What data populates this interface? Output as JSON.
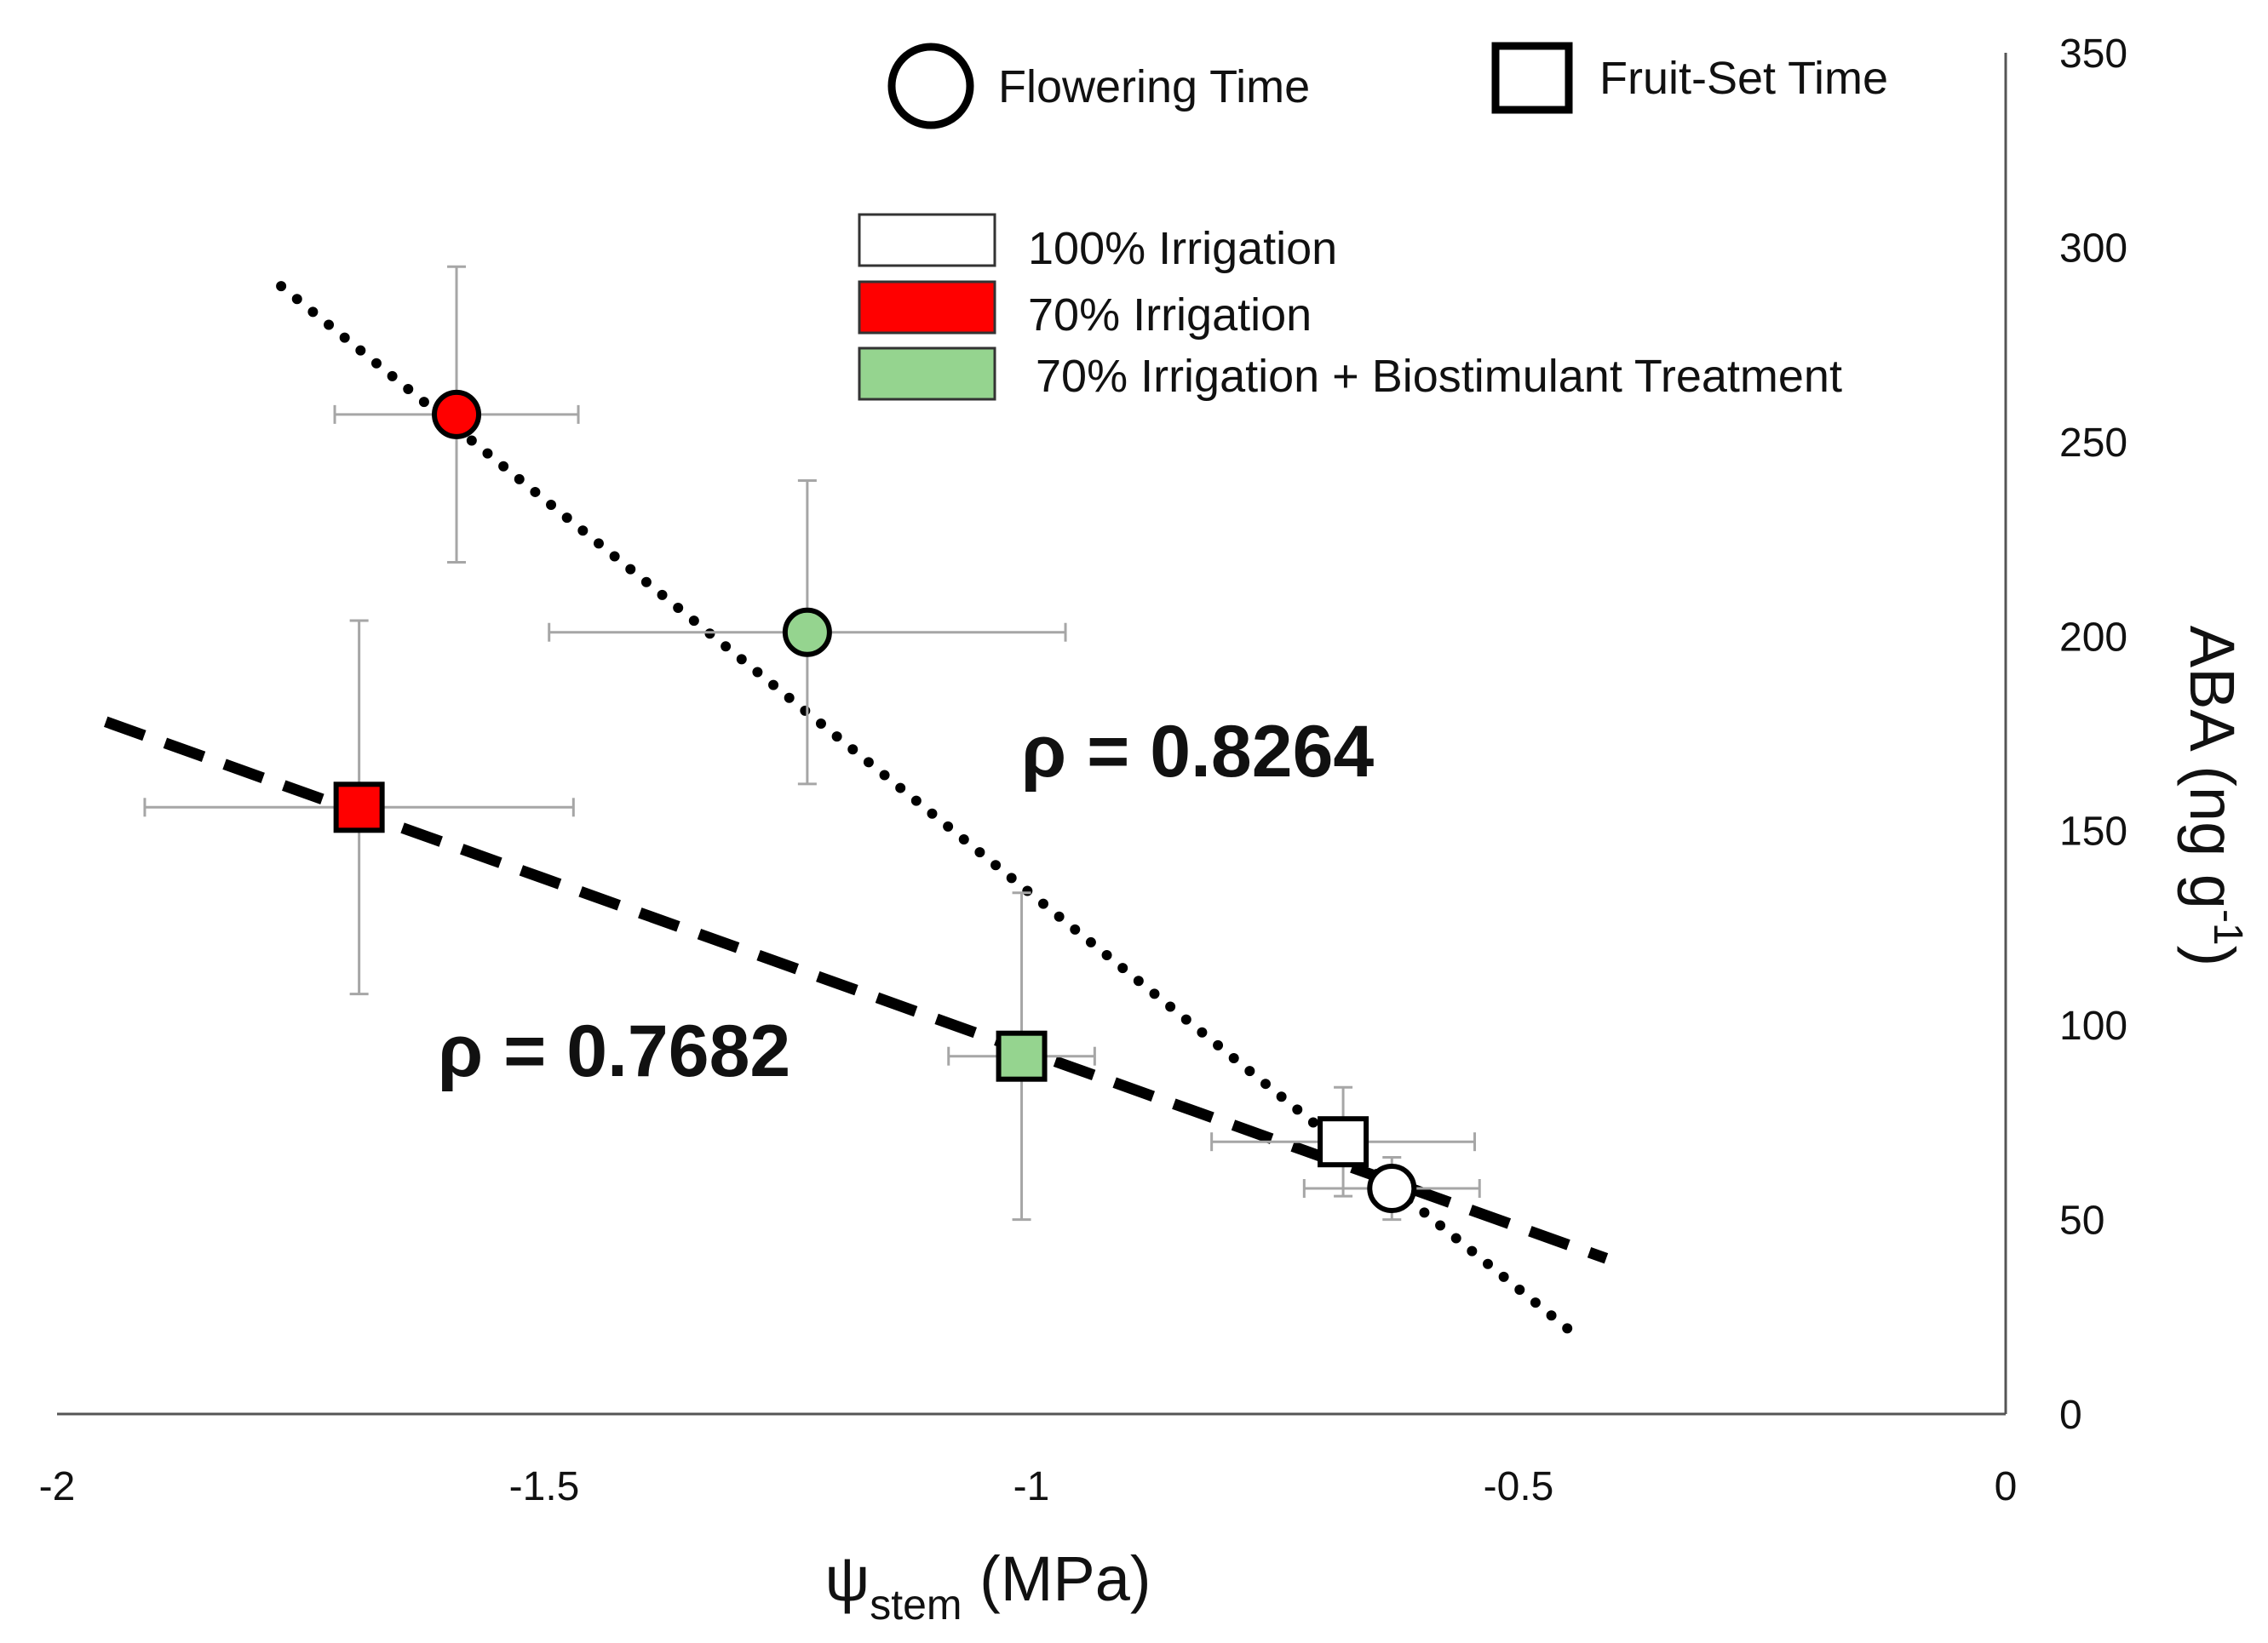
{
  "chart_data": {
    "type": "scatter",
    "title": "",
    "xlabel": {
      "main": "ψ",
      "sub": "stem",
      "unit": " (MPa)"
    },
    "ylabel": {
      "main": "ABA (ng g",
      "sup": "-1",
      "close": ")"
    },
    "xlim": [
      -2,
      0
    ],
    "ylim": [
      0,
      350
    ],
    "x_ticks": [
      {
        "value": -2,
        "label": "-2"
      },
      {
        "value": -1.5,
        "label": "-1.5"
      },
      {
        "value": -1,
        "label": "-1"
      },
      {
        "value": -0.5,
        "label": "-0.5"
      },
      {
        "value": 0,
        "label": "0"
      }
    ],
    "y_ticks": [
      {
        "value": 0,
        "label": "0"
      },
      {
        "value": 50,
        "label": "50"
      },
      {
        "value": 100,
        "label": "100"
      },
      {
        "value": 150,
        "label": "150"
      },
      {
        "value": 200,
        "label": "200"
      },
      {
        "value": 250,
        "label": "250"
      },
      {
        "value": 300,
        "label": "300"
      },
      {
        "value": 350,
        "label": "350"
      }
    ],
    "y_axis_side": "right",
    "grid": false,
    "shape_legend": [
      {
        "shape": "circle",
        "label": "Flowering Time"
      },
      {
        "shape": "square",
        "label": "Fruit-Set Time"
      }
    ],
    "color_legend": [
      {
        "color": "#ffffff",
        "label": "100% Irrigation"
      },
      {
        "color": "#ff0000",
        "label": "70% Irrigation"
      },
      {
        "color": "#95d48f",
        "label": "70% Irrigation + Biostimulant Treatment"
      }
    ],
    "series": [
      {
        "name": "Flowering Time",
        "marker": "circle",
        "points": [
          {
            "treatment": "100% Irrigation",
            "color": "#ffffff",
            "x": -0.63,
            "y": 58,
            "xerr": 0.09,
            "yerr": 8
          },
          {
            "treatment": "70% Irrigation",
            "color": "#ff0000",
            "x": -1.59,
            "y": 257,
            "xerr": 0.125,
            "yerr": 38
          },
          {
            "treatment": "70% Irrigation + Biostimulant Treatment",
            "color": "#95d48f",
            "x": -1.23,
            "y": 201,
            "xerr": 0.265,
            "yerr": 39
          }
        ],
        "trendline": {
          "style": "dotted",
          "from": [
            -1.77,
            290
          ],
          "to": [
            -0.44,
            20
          ]
        },
        "correlation_label": "ρ = 0.8264"
      },
      {
        "name": "Fruit-Set Time",
        "marker": "square",
        "points": [
          {
            "treatment": "100% Irrigation",
            "color": "#ffffff",
            "x": -0.68,
            "y": 70,
            "xerr": 0.135,
            "yerr": 14
          },
          {
            "treatment": "70% Irrigation",
            "color": "#ff0000",
            "x": -1.69,
            "y": 156,
            "xerr": 0.22,
            "yerr": 48
          },
          {
            "treatment": "70% Irrigation + Biostimulant Treatment",
            "color": "#95d48f",
            "x": -1.01,
            "y": 92,
            "xerr": 0.075,
            "yerr": 42
          }
        ],
        "trendline": {
          "style": "dashed",
          "from": [
            -1.95,
            178
          ],
          "to": [
            -0.41,
            40
          ]
        },
        "correlation_label": "ρ = 0.7682"
      }
    ]
  }
}
